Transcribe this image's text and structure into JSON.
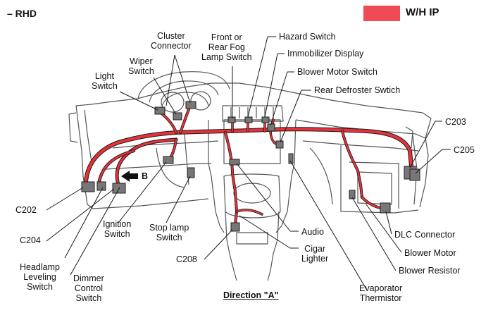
{
  "header": {
    "variant": "– RHD",
    "legend_label": "W/H IP",
    "legend_color": "#f04b55"
  },
  "colors": {
    "harness": "#e8323a",
    "line": "#1a1a1a",
    "body": "#555555"
  },
  "labels": {
    "cluster_connector": [
      "Cluster",
      "Connector"
    ],
    "front_rear_fog": [
      "Front or",
      "Rear Fog",
      "Lamp Switch"
    ],
    "hazard_switch": "Hazard Switch",
    "immobilizer_display": "Immobilizer Display",
    "blower_motor_switch": "Blower Motor Switch",
    "rear_defroster": "Rear Defroster Swtich",
    "wiper_switch": [
      "Wiper",
      "Switch"
    ],
    "light_switch": [
      "Light",
      "Switch"
    ],
    "c203": "C203",
    "c205": "C205",
    "arrow_b": "B",
    "c202": "C202",
    "c204": "C204",
    "ignition_switch": [
      "Ignition",
      "Switch"
    ],
    "stop_lamp_switch": [
      "Stop lamp",
      "Switch"
    ],
    "audio": "Audio",
    "dlc_connector": "DLC Connector",
    "cigar_lighter": [
      "Cigar",
      "Lighter"
    ],
    "c208": "C208",
    "blower_motor": "Blower Motor",
    "headlamp_leveling": [
      "Headlamp",
      "Leveling",
      "Switch"
    ],
    "dimmer_control": [
      "Dimmer",
      "Control",
      "Switch"
    ],
    "blower_resistor": "Blower Resistor",
    "evaporator_thermistor": [
      "Evaporator",
      "Thermistor"
    ],
    "direction": "Direction \"A\""
  }
}
